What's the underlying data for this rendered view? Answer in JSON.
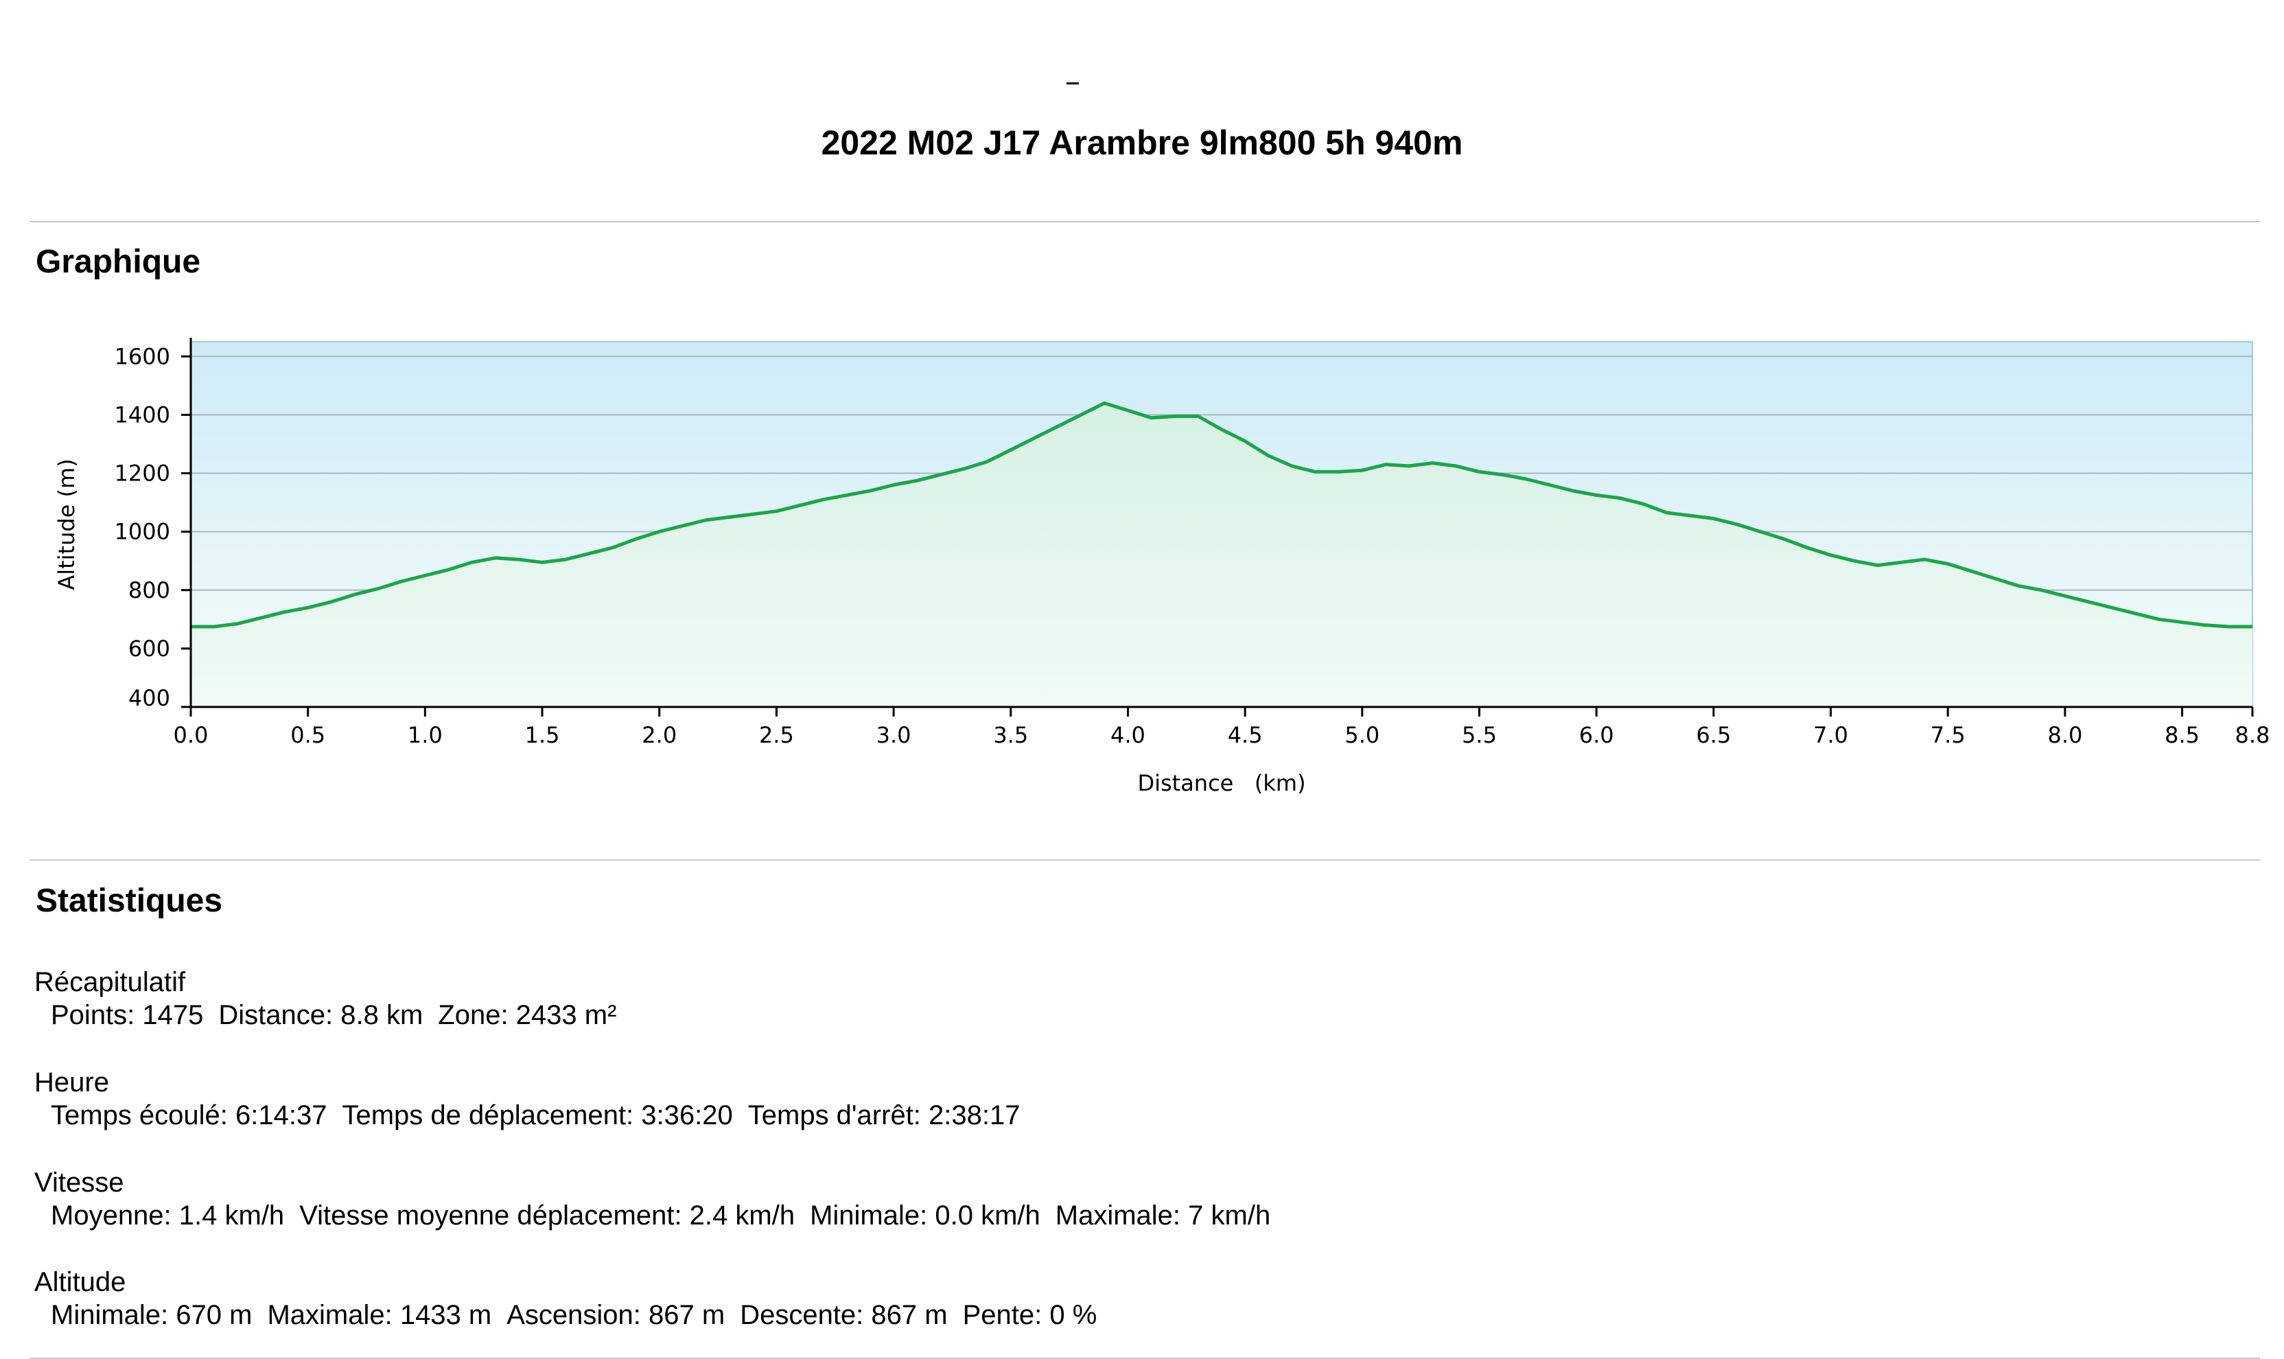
{
  "page": {
    "dash": "–",
    "title": "2022 M02 J17 Arambre 9lm800 5h 940m"
  },
  "sections": {
    "chart_heading": "Graphique",
    "stats_heading": "Statistiques"
  },
  "stats": [
    {
      "label": "Récapitulatif",
      "items": [
        "Points: 1475",
        "Distance: 8.8 km",
        "Zone: 2433 m²"
      ]
    },
    {
      "label": "Heure",
      "items": [
        "Temps écoulé: 6:14:37",
        "Temps de déplacement: 3:36:20",
        "Temps d'arrêt: 2:38:17"
      ]
    },
    {
      "label": "Vitesse",
      "items": [
        "Moyenne: 1.4 km/h",
        "Vitesse moyenne déplacement: 2.4 km/h",
        "Minimale: 0.0 km/h",
        "Maximale: 7 km/h"
      ]
    },
    {
      "label": "Altitude",
      "items": [
        "Minimale: 670 m",
        "Maximale: 1433 m",
        "Ascension: 867 m",
        "Descente: 867 m",
        "Pente: 0 %"
      ]
    }
  ],
  "colors": {
    "line": "#1aa64a",
    "fill_top": "#d6f0e4",
    "fill_bottom": "#f0fbf5",
    "bg_top": "#cdebf8",
    "bg_bottom": "#f7fcf9",
    "grid": "#a8b8be",
    "axis": "#000000"
  },
  "chart_data": {
    "type": "area",
    "xlabel": "Distance   (km)",
    "ylabel": "Altitude (m)",
    "xlim": [
      0,
      8.8
    ],
    "ylim": [
      400,
      1650
    ],
    "x_ticks": [
      "0.0",
      "0.5",
      "1.0",
      "1.5",
      "2.0",
      "2.5",
      "3.0",
      "3.5",
      "4.0",
      "4.5",
      "5.0",
      "5.5",
      "6.0",
      "6.5",
      "7.0",
      "7.5",
      "8.0",
      "8.5",
      "8.8"
    ],
    "y_ticks": [
      400,
      600,
      800,
      1000,
      1200,
      1400,
      1600
    ],
    "grid": true,
    "series": [
      {
        "x": [
          0.0,
          0.1,
          0.2,
          0.3,
          0.4,
          0.5,
          0.6,
          0.7,
          0.8,
          0.9,
          1.0,
          1.1,
          1.2,
          1.3,
          1.4,
          1.5,
          1.6,
          1.7,
          1.8,
          1.9,
          2.0,
          2.1,
          2.2,
          2.3,
          2.4,
          2.5,
          2.6,
          2.7,
          2.8,
          2.9,
          3.0,
          3.1,
          3.2,
          3.3,
          3.4,
          3.5,
          3.6,
          3.7,
          3.8,
          3.9,
          4.0,
          4.1,
          4.2,
          4.3,
          4.4,
          4.5,
          4.6,
          4.7,
          4.8,
          4.9,
          5.0,
          5.1,
          5.2,
          5.3,
          5.4,
          5.5,
          5.6,
          5.7,
          5.8,
          5.9,
          6.0,
          6.1,
          6.2,
          6.3,
          6.4,
          6.5,
          6.6,
          6.7,
          6.8,
          6.9,
          7.0,
          7.1,
          7.2,
          7.3,
          7.4,
          7.5,
          7.6,
          7.7,
          7.8,
          7.9,
          8.0,
          8.1,
          8.2,
          8.3,
          8.4,
          8.5,
          8.6,
          8.7,
          8.8
        ],
        "y": [
          675,
          675,
          685,
          705,
          725,
          740,
          760,
          785,
          805,
          830,
          850,
          870,
          895,
          910,
          905,
          895,
          905,
          925,
          945,
          975,
          1000,
          1020,
          1040,
          1050,
          1060,
          1070,
          1090,
          1110,
          1125,
          1140,
          1160,
          1175,
          1195,
          1215,
          1240,
          1280,
          1320,
          1360,
          1400,
          1440,
          1415,
          1390,
          1395,
          1395,
          1350,
          1310,
          1260,
          1225,
          1205,
          1205,
          1210,
          1230,
          1225,
          1235,
          1225,
          1205,
          1195,
          1180,
          1160,
          1140,
          1125,
          1115,
          1095,
          1065,
          1055,
          1045,
          1025,
          1000,
          975,
          945,
          920,
          900,
          885,
          895,
          905,
          890,
          865,
          840,
          815,
          800,
          780,
          760,
          740,
          720,
          700,
          690,
          680,
          675,
          675
        ]
      }
    ]
  }
}
